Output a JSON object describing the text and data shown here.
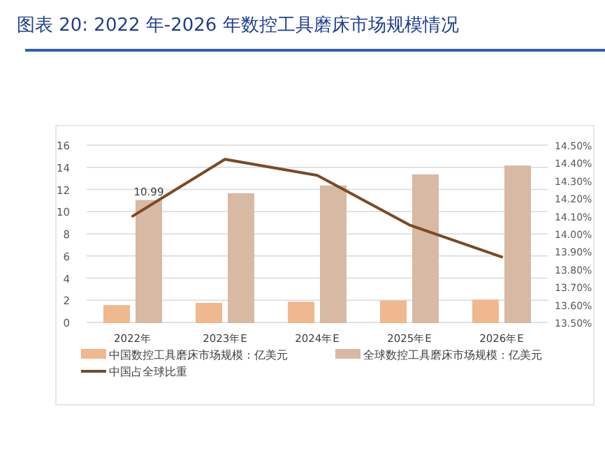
{
  "chart_data": {
    "type": "bar",
    "title": "图表 20:  2022 年-2026 年数控工具磨床市场规模情况",
    "categories": [
      "2022年",
      "2023年E",
      "2024年E",
      "2025年E",
      "2026年E"
    ],
    "series": [
      {
        "name": "中国数控工具磨床市场规模：亿美元",
        "color": "#efb88f",
        "values": [
          1.5,
          1.7,
          1.8,
          1.9,
          2.0
        ]
      },
      {
        "name": "全球数控工具磨床市场规模：亿美元",
        "color": "#d7b9a4",
        "values": [
          10.99,
          11.6,
          12.3,
          13.3,
          14.1
        ],
        "value_labels": [
          "10.99",
          null,
          null,
          null,
          null
        ]
      },
      {
        "name": "中国占全球比重",
        "type": "line",
        "axis": "y2",
        "color": "#7a4a24",
        "values": [
          14.1,
          14.42,
          14.33,
          14.05,
          13.87
        ]
      }
    ],
    "ylim": [
      0,
      16
    ],
    "yticks": [
      0,
      2,
      4,
      6,
      8,
      10,
      12,
      14,
      16
    ],
    "y2lim": [
      13.5,
      14.5
    ],
    "y2ticks": [
      {
        "value": 13.5,
        "label": "13.50%"
      },
      {
        "value": 13.6,
        "label": "13.60%"
      },
      {
        "value": 13.7,
        "label": "13.70%"
      },
      {
        "value": 13.8,
        "label": "13.80%"
      },
      {
        "value": 13.9,
        "label": "13.90%"
      },
      {
        "value": 14.0,
        "label": "14.00%"
      },
      {
        "value": 14.1,
        "label": "14.10%"
      },
      {
        "value": 14.2,
        "label": "14.20%"
      },
      {
        "value": 14.3,
        "label": "14.30%"
      },
      {
        "value": 14.4,
        "label": "14.40%"
      },
      {
        "value": 14.5,
        "label": "14.50%"
      }
    ],
    "grid": "y",
    "legend": "bottom",
    "marker": "none"
  }
}
